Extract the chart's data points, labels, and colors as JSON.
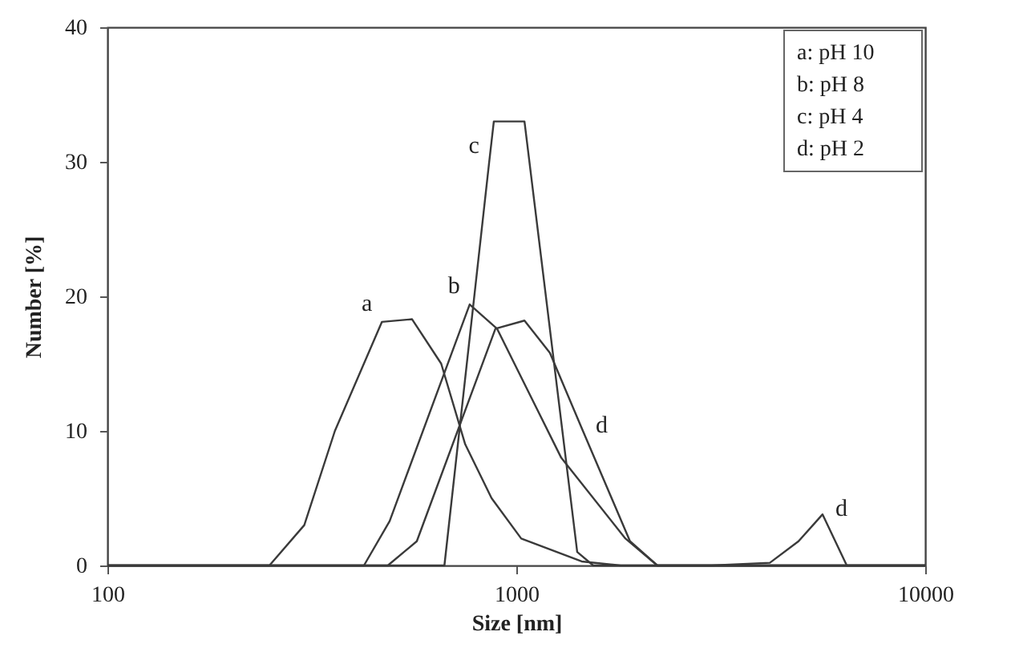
{
  "chart_data": {
    "type": "line",
    "xlabel": "Size [nm]",
    "ylabel": "Number [%]",
    "log": "x",
    "xlim": [
      100,
      10000
    ],
    "xticks": [
      100,
      1000,
      10000
    ],
    "ylim": [
      0,
      40
    ],
    "yticks": [
      0,
      10,
      20,
      30,
      40
    ],
    "grid": false,
    "series": [
      {
        "color": "#3a3a3a",
        "x": [
          100,
          249,
          303,
          360,
          469,
          556,
          655,
          750,
          870,
          1028,
          1445,
          1800,
          10000
        ],
        "values": [
          0,
          0,
          3,
          10,
          18.1,
          18.3,
          15,
          9,
          5,
          2,
          0.3,
          0,
          0
        ]
      },
      {
        "color": "#3a3a3a",
        "x": [
          100,
          424,
          490,
          769,
          897,
          1288,
          1849,
          2213,
          10000
        ],
        "values": [
          0,
          0,
          3.3,
          19.4,
          17.6,
          8,
          2,
          0,
          0
        ]
      },
      {
        "color": "#3a3a3a",
        "x": [
          100,
          667,
          857,
          881,
          1047,
          1409,
          1542,
          10000
        ],
        "values": [
          0,
          0,
          29.8,
          33,
          33,
          1,
          0,
          0
        ]
      },
      {
        "color": "#3a3a3a",
        "x": [
          100,
          485,
          571,
          889,
          1047,
          1208,
          1455,
          1897,
          2213,
          3000,
          4170,
          4900,
          5610,
          6430,
          10000
        ],
        "values": [
          0,
          0,
          1.8,
          17.6,
          18.2,
          15.8,
          10,
          1.8,
          0,
          0,
          0.2,
          1.8,
          3.8,
          0,
          0
        ]
      }
    ],
    "annotations": [
      {
        "text": "a",
        "x": 469,
        "y": 18.1
      },
      {
        "text": "b",
        "x": 769,
        "y": 19.4
      },
      {
        "text": "c",
        "x": 857,
        "y": 29.8
      },
      {
        "text": "d",
        "x": 1455,
        "y": 10
      },
      {
        "text": "d",
        "x": 5610,
        "y": 3.8
      },
      "a: pH 10",
      "b: pH 8",
      "c: pH 4",
      "d: pH 2"
    ]
  }
}
